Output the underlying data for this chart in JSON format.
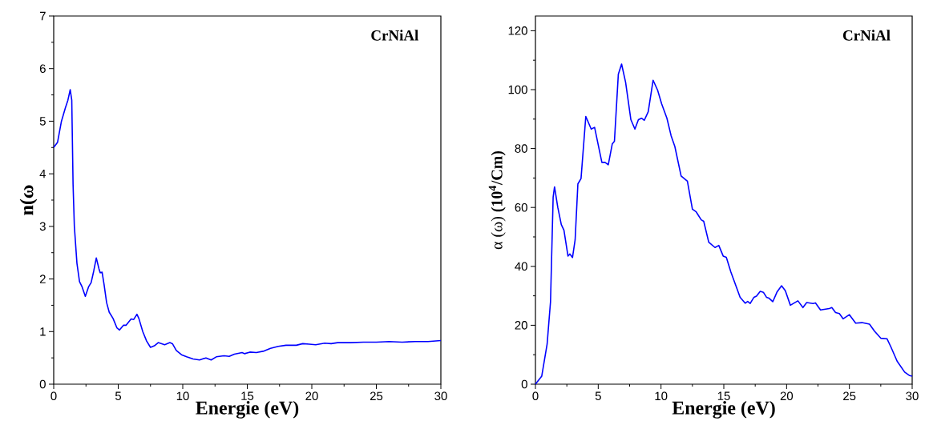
{
  "chart_data": [
    {
      "type": "line",
      "xlabel": "Energie (eV)",
      "ylabel": "n(ω",
      "annotations": [
        "CrNiAl"
      ],
      "xlim": [
        0,
        30
      ],
      "ylim": [
        0,
        7
      ],
      "xticks": [
        0,
        5,
        10,
        15,
        20,
        25,
        30
      ],
      "yticks": [
        0,
        1,
        2,
        3,
        4,
        5,
        6,
        7
      ],
      "line_style": "solid",
      "series": [
        {
          "color": "#0000ff",
          "x": [
            0,
            0.3,
            0.6,
            0.9,
            1.1,
            1.28,
            1.4,
            1.5,
            1.6,
            1.8,
            2.0,
            2.2,
            2.45,
            2.7,
            2.9,
            3.1,
            3.3,
            3.5,
            3.6,
            3.75,
            3.9,
            4.1,
            4.3,
            4.6,
            4.9,
            5.1,
            5.4,
            5.6,
            6.0,
            6.2,
            6.45,
            6.6,
            6.9,
            7.2,
            7.5,
            7.8,
            8.1,
            8.6,
            9.0,
            9.2,
            9.5,
            9.9,
            10.3,
            10.8,
            11.3,
            11.8,
            12.2,
            12.6,
            13.2,
            13.6,
            14.0,
            14.6,
            14.8,
            15.2,
            15.7,
            16.3,
            16.8,
            17.4,
            18,
            18.8,
            19.3,
            19.8,
            20.3,
            21,
            21.5,
            22,
            23,
            24,
            25,
            26,
            27,
            28,
            29,
            30
          ],
          "values": [
            4.5,
            4.6,
            5.0,
            5.25,
            5.4,
            5.6,
            5.4,
            3.8,
            3.0,
            2.3,
            1.95,
            1.85,
            1.67,
            1.85,
            1.93,
            2.15,
            2.4,
            2.2,
            2.12,
            2.13,
            1.9,
            1.55,
            1.37,
            1.25,
            1.07,
            1.03,
            1.12,
            1.12,
            1.24,
            1.23,
            1.33,
            1.25,
            1.0,
            0.82,
            0.7,
            0.73,
            0.79,
            0.75,
            0.79,
            0.77,
            0.64,
            0.56,
            0.52,
            0.48,
            0.46,
            0.5,
            0.46,
            0.52,
            0.54,
            0.53,
            0.57,
            0.6,
            0.58,
            0.61,
            0.6,
            0.63,
            0.68,
            0.72,
            0.74,
            0.74,
            0.77,
            0.76,
            0.75,
            0.78,
            0.77,
            0.79,
            0.79,
            0.8,
            0.8,
            0.81,
            0.8,
            0.81,
            0.81,
            0.83
          ]
        }
      ]
    },
    {
      "type": "line",
      "xlabel": "Energie (eV)",
      "ylabel": "α (ω) **(10$^{4}$/Cm)**",
      "annotations": [
        "CrNiAl"
      ],
      "xlim": [
        0,
        30
      ],
      "ylim": [
        0,
        125
      ],
      "xticks": [
        0,
        5,
        10,
        15,
        20,
        25,
        30
      ],
      "yticks": [
        0,
        20,
        40,
        60,
        80,
        100,
        120
      ],
      "line_style": "solid",
      "series": [
        {
          "color": "#0000ff",
          "x": [
            0,
            0.5,
            0.93,
            1.2,
            1.41,
            1.52,
            1.78,
            2.06,
            2.27,
            2.59,
            2.74,
            2.95,
            3.16,
            3.38,
            3.63,
            4.01,
            4.44,
            4.71,
            5.29,
            5.54,
            5.8,
            6.12,
            6.29,
            6.6,
            6.86,
            7.18,
            7.6,
            7.92,
            8.2,
            8.45,
            8.67,
            8.98,
            9.37,
            9.73,
            10.05,
            10.47,
            10.8,
            11.1,
            11.6,
            12.1,
            12.5,
            12.8,
            13.2,
            13.4,
            13.8,
            14.3,
            14.6,
            14.95,
            15.2,
            15.56,
            16.3,
            16.7,
            16.9,
            17.1,
            17.4,
            17.6,
            17.9,
            18.15,
            18.4,
            18.6,
            18.9,
            19.25,
            19.6,
            19.9,
            20.3,
            20.9,
            21.3,
            21.6,
            22.1,
            22.3,
            22.7,
            23.4,
            23.6,
            23.9,
            24.2,
            24.5,
            25.0,
            25.5,
            26.0,
            26.6,
            27.0,
            27.5,
            28.0,
            28.3,
            28.8,
            29.4,
            29.8,
            30
          ],
          "values": [
            0,
            2.7,
            13.6,
            28,
            63.5,
            67,
            60,
            54.2,
            52.3,
            43.5,
            44.2,
            43,
            49,
            68,
            69.8,
            90.9,
            86.6,
            87.2,
            75.3,
            75.3,
            74.5,
            81.6,
            82.5,
            105.2,
            108.7,
            102.5,
            89.8,
            86.6,
            89.8,
            90.3,
            89.6,
            92.5,
            103.2,
            99.8,
            95.2,
            90.3,
            84.4,
            80.7,
            70.7,
            68.9,
            59.4,
            58.5,
            55.8,
            55.3,
            48.2,
            46.4,
            47.1,
            43.5,
            43.1,
            38.1,
            29.5,
            27.5,
            28.1,
            27.4,
            29.5,
            29.9,
            31.5,
            31.2,
            29.5,
            29.2,
            28.0,
            31.4,
            33.4,
            31.7,
            26.8,
            28.3,
            26.0,
            27.7,
            27.4,
            27.6,
            25.2,
            25.7,
            26.0,
            24.3,
            24.0,
            22.2,
            23.6,
            20.7,
            20.9,
            20.4,
            18.0,
            15.6,
            15.4,
            12.7,
            7.8,
            4.1,
            2.9,
            2.7
          ]
        }
      ]
    }
  ]
}
